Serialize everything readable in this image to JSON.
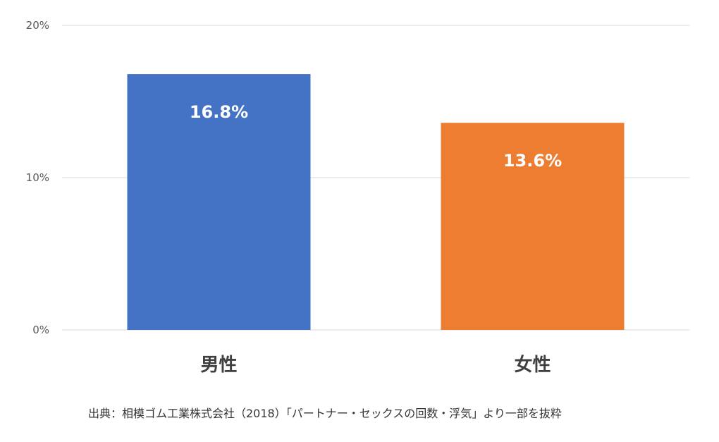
{
  "chart_data": {
    "type": "bar",
    "title": "",
    "xlabel": "",
    "ylabel": "",
    "categories": [
      "男性",
      "女性"
    ],
    "values": [
      16.8,
      13.6
    ],
    "data_labels": [
      "16.8%",
      "13.6%"
    ],
    "ylim": [
      0,
      20
    ],
    "y_ticks": [
      0,
      10,
      20
    ],
    "y_tick_labels": [
      "0%",
      "10%",
      "20%"
    ],
    "grid": true,
    "legend": "none",
    "bar_colors": [
      "#4472C4",
      "#ED7D31"
    ],
    "grid_color": "#D9D9D9"
  },
  "source_note": "出典：相模ゴム工業株式会社（2018）「パートナー・セックスの回数・浮気」より一部を抜粋"
}
